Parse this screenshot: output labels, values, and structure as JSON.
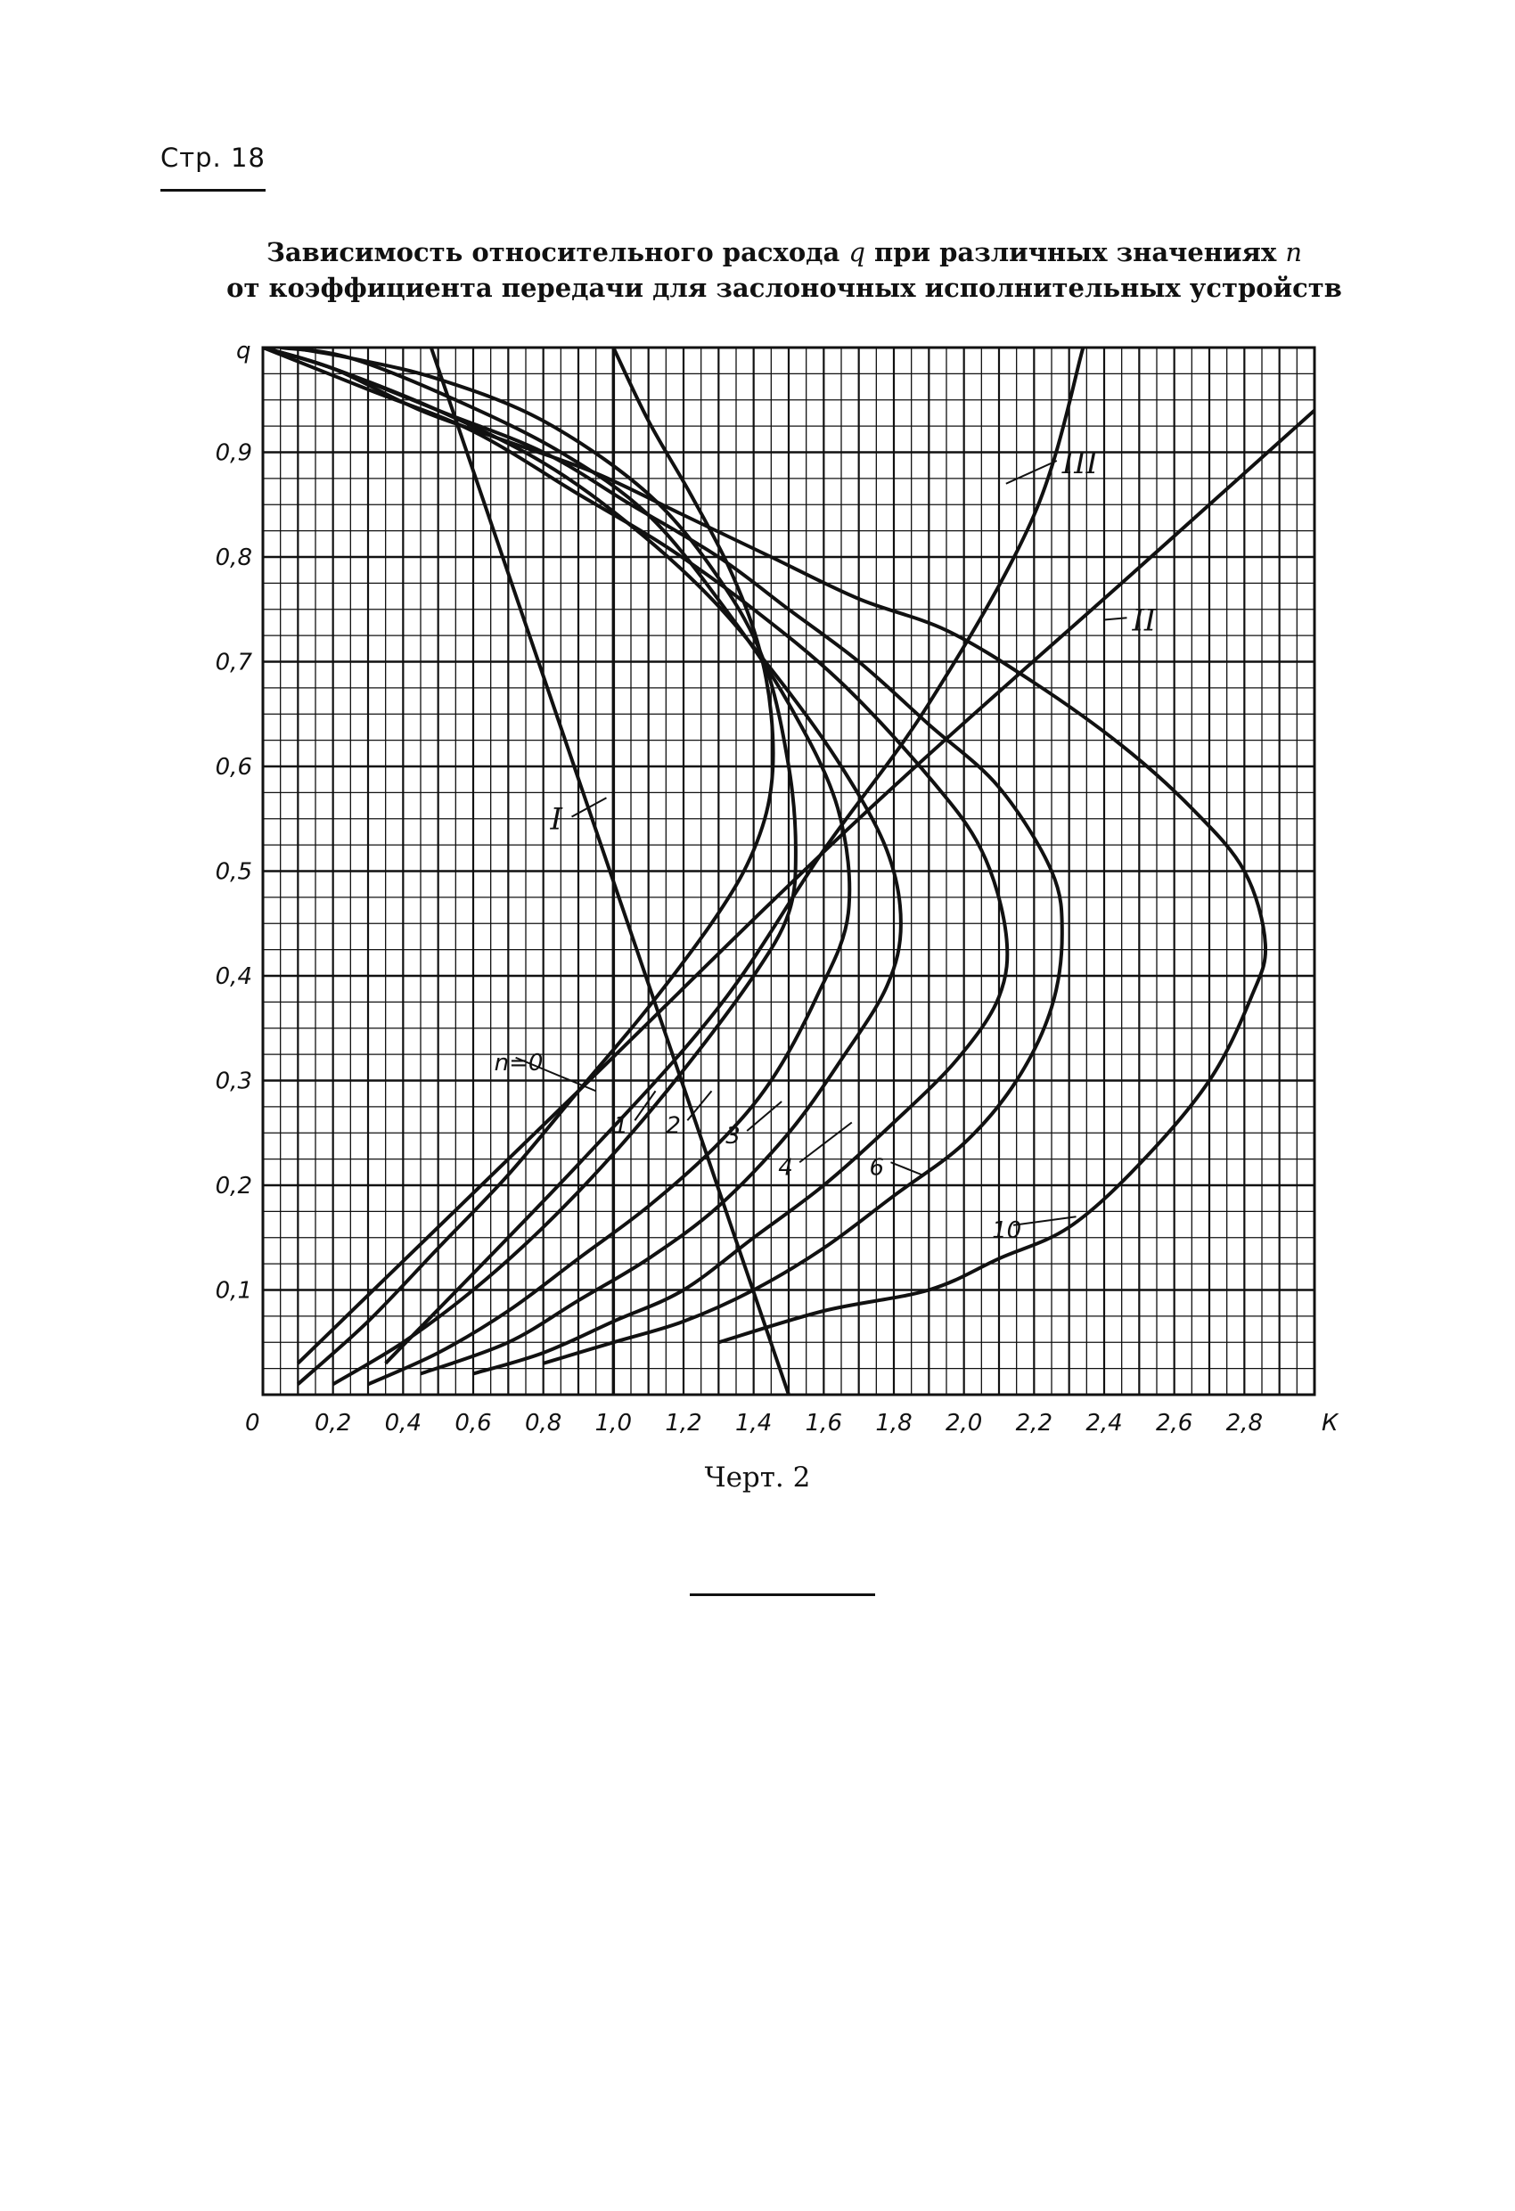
{
  "page_header": "Стр. 18",
  "title": {
    "line1_a": "Зависимость относительного расхода ",
    "line1_q": "q",
    "line1_b": " при различных значениях ",
    "line1_n": "n",
    "line2": "от коэффициента передачи для заслоночных исполнительных устройств"
  },
  "caption": "Черт. 2",
  "chart_data": {
    "type": "line",
    "xlabel": "К",
    "ylabel": "q",
    "origin_label": "0",
    "xlim": [
      0,
      3.0
    ],
    "ylim": [
      0,
      1.0
    ],
    "grid": true,
    "x_ticks": [
      {
        "value": 0.2,
        "label": "0,2"
      },
      {
        "value": 0.4,
        "label": "0,4"
      },
      {
        "value": 0.6,
        "label": "0,6"
      },
      {
        "value": 0.8,
        "label": "0,8"
      },
      {
        "value": 1.0,
        "label": "1,0"
      },
      {
        "value": 1.2,
        "label": "1,2"
      },
      {
        "value": 1.4,
        "label": "1,4"
      },
      {
        "value": 1.6,
        "label": "1,6"
      },
      {
        "value": 1.8,
        "label": "1,8"
      },
      {
        "value": 2.0,
        "label": "2,0"
      },
      {
        "value": 2.2,
        "label": "2,2"
      },
      {
        "value": 2.4,
        "label": "2,4"
      },
      {
        "value": 2.6,
        "label": "2,6"
      },
      {
        "value": 2.8,
        "label": "2,8"
      }
    ],
    "y_ticks": [
      {
        "value": 0.1,
        "label": "0,1"
      },
      {
        "value": 0.2,
        "label": "0,2"
      },
      {
        "value": 0.3,
        "label": "0,3"
      },
      {
        "value": 0.4,
        "label": "0,4"
      },
      {
        "value": 0.5,
        "label": "0,5"
      },
      {
        "value": 0.6,
        "label": "0,6"
      },
      {
        "value": 0.7,
        "label": "0,7"
      },
      {
        "value": 0.8,
        "label": "0,8"
      },
      {
        "value": 0.9,
        "label": "0,9"
      }
    ],
    "series": [
      {
        "name": "n=0",
        "points": [
          [
            0.1,
            0.01
          ],
          [
            0.3,
            0.07
          ],
          [
            0.5,
            0.14
          ],
          [
            0.7,
            0.21
          ],
          [
            0.9,
            0.29
          ],
          [
            1.1,
            0.37
          ],
          [
            1.3,
            0.46
          ],
          [
            1.4,
            0.52
          ],
          [
            1.45,
            0.58
          ],
          [
            1.45,
            0.65
          ],
          [
            1.41,
            0.72
          ],
          [
            1.33,
            0.79
          ],
          [
            1.22,
            0.86
          ],
          [
            1.1,
            0.93
          ],
          [
            1.0,
            1.0
          ]
        ]
      },
      {
        "name": "1",
        "points": [
          [
            0.2,
            0.01
          ],
          [
            0.4,
            0.05
          ],
          [
            0.6,
            0.1
          ],
          [
            0.8,
            0.16
          ],
          [
            1.0,
            0.23
          ],
          [
            1.2,
            0.31
          ],
          [
            1.4,
            0.4
          ],
          [
            1.5,
            0.46
          ],
          [
            1.52,
            0.52
          ],
          [
            1.5,
            0.6
          ],
          [
            1.43,
            0.7
          ],
          [
            1.3,
            0.78
          ],
          [
            1.1,
            0.86
          ],
          [
            0.8,
            0.93
          ],
          [
            0.5,
            0.97
          ],
          [
            0.25,
            0.99
          ],
          [
            0.08,
            1.0
          ]
        ]
      },
      {
        "name": "2",
        "points": [
          [
            0.3,
            0.01
          ],
          [
            0.5,
            0.04
          ],
          [
            0.7,
            0.08
          ],
          [
            0.9,
            0.13
          ],
          [
            1.1,
            0.18
          ],
          [
            1.3,
            0.24
          ],
          [
            1.45,
            0.3
          ],
          [
            1.58,
            0.38
          ],
          [
            1.67,
            0.46
          ],
          [
            1.64,
            0.56
          ],
          [
            1.5,
            0.66
          ],
          [
            1.32,
            0.75
          ],
          [
            1.1,
            0.84
          ],
          [
            0.85,
            0.9
          ],
          [
            0.55,
            0.95
          ],
          [
            0.25,
            0.99
          ],
          [
            0.05,
            1.0
          ]
        ]
      },
      {
        "name": "3",
        "points": [
          [
            0.45,
            0.02
          ],
          [
            0.7,
            0.05
          ],
          [
            0.9,
            0.09
          ],
          [
            1.1,
            0.13
          ],
          [
            1.3,
            0.18
          ],
          [
            1.5,
            0.25
          ],
          [
            1.65,
            0.32
          ],
          [
            1.78,
            0.39
          ],
          [
            1.82,
            0.45
          ],
          [
            1.78,
            0.52
          ],
          [
            1.65,
            0.6
          ],
          [
            1.48,
            0.68
          ],
          [
            1.28,
            0.76
          ],
          [
            1.05,
            0.83
          ],
          [
            0.8,
            0.89
          ],
          [
            0.5,
            0.94
          ],
          [
            0.2,
            0.98
          ],
          [
            0.0,
            1.0
          ]
        ]
      },
      {
        "name": "4",
        "points": [
          [
            0.6,
            0.02
          ],
          [
            0.8,
            0.04
          ],
          [
            1.0,
            0.07
          ],
          [
            1.2,
            0.1
          ],
          [
            1.4,
            0.15
          ],
          [
            1.6,
            0.2
          ],
          [
            1.8,
            0.26
          ],
          [
            1.98,
            0.32
          ],
          [
            2.1,
            0.38
          ],
          [
            2.12,
            0.44
          ],
          [
            2.05,
            0.52
          ],
          [
            1.9,
            0.59
          ],
          [
            1.65,
            0.68
          ],
          [
            1.4,
            0.75
          ],
          [
            1.15,
            0.81
          ],
          [
            0.9,
            0.86
          ],
          [
            0.6,
            0.92
          ],
          [
            0.3,
            0.96
          ],
          [
            0.0,
            1.0
          ]
        ]
      },
      {
        "name": "6",
        "points": [
          [
            0.8,
            0.03
          ],
          [
            1.0,
            0.05
          ],
          [
            1.2,
            0.07
          ],
          [
            1.4,
            0.1
          ],
          [
            1.6,
            0.14
          ],
          [
            1.8,
            0.19
          ],
          [
            2.0,
            0.24
          ],
          [
            2.15,
            0.3
          ],
          [
            2.25,
            0.37
          ],
          [
            2.28,
            0.44
          ],
          [
            2.25,
            0.5
          ],
          [
            2.1,
            0.58
          ],
          [
            1.9,
            0.64
          ],
          [
            1.7,
            0.7
          ],
          [
            1.5,
            0.75
          ],
          [
            1.3,
            0.8
          ],
          [
            1.05,
            0.85
          ],
          [
            0.8,
            0.9
          ],
          [
            0.5,
            0.94
          ],
          [
            0.2,
            0.98
          ],
          [
            0.0,
            1.0
          ]
        ]
      },
      {
        "name": "10",
        "points": [
          [
            1.3,
            0.05
          ],
          [
            1.6,
            0.08
          ],
          [
            1.9,
            0.1
          ],
          [
            2.1,
            0.13
          ],
          [
            2.3,
            0.16
          ],
          [
            2.5,
            0.22
          ],
          [
            2.7,
            0.3
          ],
          [
            2.82,
            0.38
          ],
          [
            2.86,
            0.43
          ],
          [
            2.8,
            0.5
          ],
          [
            2.65,
            0.56
          ],
          [
            2.45,
            0.62
          ],
          [
            2.2,
            0.68
          ],
          [
            1.95,
            0.73
          ],
          [
            1.7,
            0.76
          ],
          [
            1.45,
            0.8
          ],
          [
            1.2,
            0.84
          ],
          [
            0.95,
            0.88
          ],
          [
            0.7,
            0.91
          ],
          [
            0.45,
            0.94
          ],
          [
            0.2,
            0.98
          ],
          [
            0.0,
            1.0
          ]
        ]
      },
      {
        "name": "I",
        "points": [
          [
            0.48,
            1.0
          ],
          [
            1.5,
            0.0
          ]
        ]
      },
      {
        "name": "II",
        "points": [
          [
            0.1,
            0.03
          ],
          [
            0.9,
            0.29
          ],
          [
            1.7,
            0.55
          ],
          [
            2.5,
            0.79
          ],
          [
            3.0,
            0.94
          ]
        ]
      },
      {
        "name": "III",
        "points": [
          [
            0.35,
            0.03
          ],
          [
            0.9,
            0.22
          ],
          [
            1.3,
            0.37
          ],
          [
            1.6,
            0.52
          ],
          [
            1.9,
            0.66
          ],
          [
            2.2,
            0.84
          ],
          [
            2.34,
            1.0
          ]
        ]
      }
    ],
    "labels": [
      {
        "series": "n=0",
        "text": "n=0"
      },
      {
        "series": "1",
        "text": "1"
      },
      {
        "series": "2",
        "text": "2"
      },
      {
        "series": "3",
        "text": "3"
      },
      {
        "series": "4",
        "text": "4"
      },
      {
        "series": "6",
        "text": "6"
      },
      {
        "series": "10",
        "text": "10"
      },
      {
        "series": "I",
        "text": "I"
      },
      {
        "series": "II",
        "text": "II"
      },
      {
        "series": "III",
        "text": "III"
      }
    ]
  }
}
